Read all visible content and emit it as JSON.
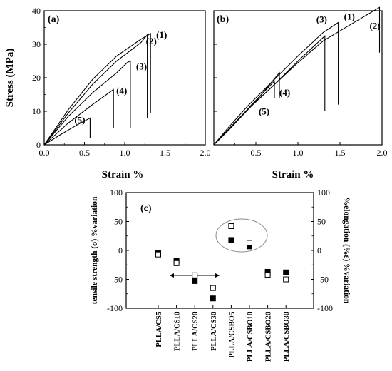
{
  "chart_data": [
    {
      "type": "line",
      "panel_label": "(a)",
      "ylabel": "Stress (MPa)",
      "xlabel": "Strain %",
      "xlim": [
        0,
        2.0
      ],
      "ylim": [
        0,
        40
      ],
      "xticks": [
        "0.0",
        "0.5",
        "1.0",
        "1.5",
        "2.0"
      ],
      "yticks": [
        "0",
        "10",
        "20",
        "30",
        "40"
      ],
      "series": [
        {
          "name": "(1)",
          "x": [
            0,
            0.3,
            0.6,
            0.9,
            1.2,
            1.32,
            1.32
          ],
          "y": [
            0,
            10.5,
            19.5,
            26.5,
            31.5,
            33.2,
            9.5
          ]
        },
        {
          "name": "(2)",
          "x": [
            0,
            0.3,
            0.6,
            0.9,
            1.2,
            1.28,
            1.28
          ],
          "y": [
            0,
            9.5,
            18.0,
            25.0,
            30.5,
            32.8,
            8.0
          ]
        },
        {
          "name": "(3)",
          "x": [
            0,
            0.3,
            0.6,
            0.9,
            1.03,
            1.07,
            1.07
          ],
          "y": [
            0,
            8.5,
            15.5,
            21.5,
            24.5,
            25.0,
            5.0
          ]
        },
        {
          "name": "(4)",
          "x": [
            0,
            0.3,
            0.6,
            0.86,
            0.86
          ],
          "y": [
            0,
            6.5,
            12.0,
            16.5,
            5.0
          ]
        },
        {
          "name": "(5)",
          "x": [
            0,
            0.2,
            0.4,
            0.57,
            0.57
          ],
          "y": [
            0,
            3.0,
            5.8,
            8.0,
            2.0
          ]
        }
      ]
    },
    {
      "type": "line",
      "panel_label": "(b)",
      "xlabel": "Strain %",
      "xlim": [
        0,
        2.0
      ],
      "ylim": [
        0,
        40
      ],
      "xticks": [
        "0.5",
        "1.0",
        "1.5",
        "2.0"
      ],
      "series": [
        {
          "name": "(1)",
          "x": [
            0,
            0.15,
            0.4,
            0.7,
            1.0,
            1.3,
            1.48,
            1.48
          ],
          "y": [
            0,
            4.5,
            11.5,
            19.0,
            26.5,
            33.5,
            36.5,
            12.0
          ]
        },
        {
          "name": "(2)",
          "x": [
            0,
            0.15,
            0.4,
            0.7,
            1.0,
            1.3,
            1.6,
            1.97,
            1.97
          ],
          "y": [
            0,
            4.0,
            10.5,
            17.5,
            24.5,
            31.0,
            35.5,
            41.0,
            27.5
          ]
        },
        {
          "name": "(3)",
          "x": [
            0,
            0.15,
            0.4,
            0.7,
            1.0,
            1.32,
            1.32
          ],
          "y": [
            0,
            4.0,
            10.5,
            17.5,
            25.0,
            32.5,
            10.0
          ]
        },
        {
          "name": "(4)",
          "x": [
            0,
            0.2,
            0.5,
            0.78,
            0.78
          ],
          "y": [
            0,
            5.0,
            13.0,
            21.5,
            14.0
          ]
        },
        {
          "name": "(5)",
          "x": [
            0,
            0.2,
            0.45,
            0.72,
            0.72
          ],
          "y": [
            0,
            5.0,
            12.0,
            19.0,
            14.0
          ]
        }
      ]
    },
    {
      "type": "scatter",
      "panel_label": "(c)",
      "ylabel": "tensile strength (σ) %variation",
      "ylabel_right": "%elongation (%ε) %variation",
      "ylim": [
        -100,
        100
      ],
      "yticks": [
        "-100",
        "-50",
        "0",
        "50",
        "100"
      ],
      "categories": [
        "PLLA/CS5",
        "PLLA/CS10",
        "PLLA/CS20",
        "PLLA/CS30",
        "PLLA/CSBO5",
        "PLLA/CSBO10",
        "PLLA/CSBO20",
        "PLLA/CSBO30"
      ],
      "series": [
        {
          "marker": "filled-square",
          "values": [
            -5,
            -18,
            -53,
            -83,
            18,
            7,
            -37,
            -38
          ]
        },
        {
          "marker": "open-square",
          "values": [
            -7,
            -22,
            -43,
            -65,
            42,
            13,
            -42,
            -50
          ]
        }
      ],
      "annotations": [
        "ellipse around PLLA/CSBO5 and PLLA/CSBO10",
        "arrow pointing left and right at PLLA/CS20"
      ]
    }
  ]
}
